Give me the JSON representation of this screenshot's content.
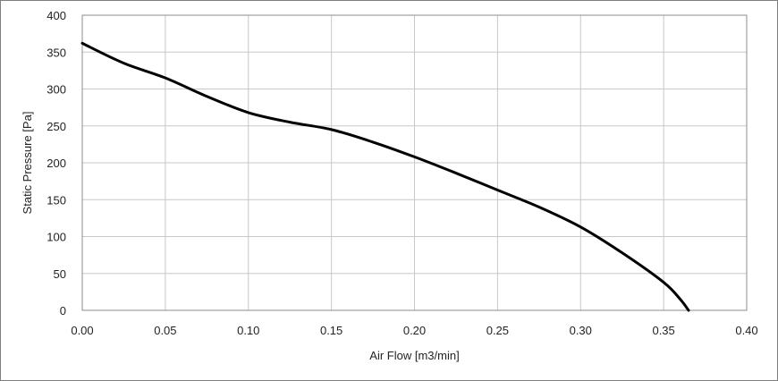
{
  "chart_data": {
    "type": "line",
    "title": "",
    "xlabel": "Air Flow [m3/min]",
    "ylabel": "Static Pressure [Pa]",
    "xlim": [
      0.0,
      0.4
    ],
    "ylim": [
      0,
      400
    ],
    "x_ticks": [
      "0.00",
      "0.05",
      "0.10",
      "0.15",
      "0.20",
      "0.25",
      "0.30",
      "0.35",
      "0.40"
    ],
    "y_ticks": [
      "0",
      "50",
      "100",
      "150",
      "200",
      "250",
      "300",
      "350",
      "400"
    ],
    "grid": true,
    "legend": "none",
    "series": [
      {
        "color": "#000000",
        "x": [
          0.0,
          0.025,
          0.05,
          0.075,
          0.1,
          0.125,
          0.15,
          0.175,
          0.2,
          0.225,
          0.25,
          0.275,
          0.3,
          0.325,
          0.35,
          0.36,
          0.365
        ],
        "y": [
          362,
          335,
          315,
          290,
          268,
          255,
          245,
          228,
          208,
          186,
          163,
          140,
          113,
          78,
          38,
          15,
          0
        ]
      }
    ]
  }
}
